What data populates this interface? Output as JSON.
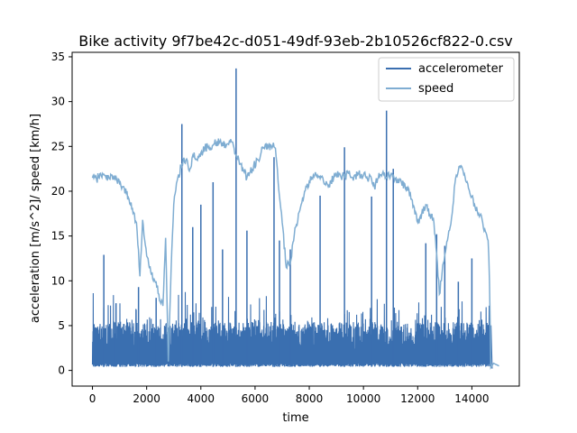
{
  "chart_data": {
    "type": "line",
    "title": "Bike activity 9f7be42c-d051-49df-93eb-2b10526cf822-0.csv",
    "xlabel": "time",
    "ylabel": "acceleration [m/s^2]/ speed [km/h]",
    "xlim": [
      -750,
      15750
    ],
    "ylim": [
      -1.75,
      35.5
    ],
    "xticks": [
      0,
      2000,
      4000,
      6000,
      8000,
      10000,
      12000,
      14000
    ],
    "xtick_labels": [
      "0",
      "2000",
      "4000",
      "6000",
      "8000",
      "10000",
      "12000",
      "14000"
    ],
    "yticks": [
      0,
      5,
      10,
      15,
      20,
      25,
      30,
      35
    ],
    "ytick_labels": [
      "0",
      "5",
      "10",
      "15",
      "20",
      "25",
      "30",
      "35"
    ],
    "grid": false,
    "legend": {
      "placement": "upper right"
    },
    "series": [
      {
        "name": "accelerometer",
        "color": "#3a6fb0",
        "baseline_low": 0.4,
        "typical_high": 4.5,
        "x_end": 14700,
        "spikes": [
          {
            "x": 420,
            "y": 12.9
          },
          {
            "x": 870,
            "y": 7.5
          },
          {
            "x": 1700,
            "y": 9.3
          },
          {
            "x": 2350,
            "y": 8.1
          },
          {
            "x": 3300,
            "y": 27.5
          },
          {
            "x": 3700,
            "y": 16.0
          },
          {
            "x": 4000,
            "y": 18.5
          },
          {
            "x": 4450,
            "y": 21.0
          },
          {
            "x": 4800,
            "y": 13.5
          },
          {
            "x": 5300,
            "y": 33.7
          },
          {
            "x": 5700,
            "y": 15.6
          },
          {
            "x": 6700,
            "y": 23.8
          },
          {
            "x": 6900,
            "y": 14.5
          },
          {
            "x": 7300,
            "y": 13.5
          },
          {
            "x": 8400,
            "y": 19.5
          },
          {
            "x": 9300,
            "y": 24.9
          },
          {
            "x": 10300,
            "y": 19.4
          },
          {
            "x": 10850,
            "y": 29.0
          },
          {
            "x": 11100,
            "y": 22.5
          },
          {
            "x": 12300,
            "y": 14.2
          },
          {
            "x": 12700,
            "y": 15.2
          },
          {
            "x": 13000,
            "y": 13.9
          },
          {
            "x": 13500,
            "y": 9.9
          },
          {
            "x": 14000,
            "y": 12.5
          }
        ]
      },
      {
        "name": "speed",
        "color": "#7fadd2",
        "x": [
          0,
          150,
          300,
          500,
          700,
          900,
          1100,
          1250,
          1400,
          1550,
          1650,
          1750,
          1850,
          1950,
          2050,
          2150,
          2300,
          2450,
          2600,
          2700,
          2800,
          2900,
          3000,
          3150,
          3300,
          3450,
          3600,
          3700,
          3850,
          4000,
          4150,
          4300,
          4500,
          4700,
          4900,
          5100,
          5300,
          5400,
          5550,
          5700,
          5900,
          6100,
          6300,
          6500,
          6650,
          6750,
          6850,
          7000,
          7150,
          7300,
          7500,
          7700,
          7900,
          8100,
          8300,
          8500,
          8700,
          8900,
          9100,
          9300,
          9450,
          9600,
          9800,
          10000,
          10200,
          10400,
          10550,
          10700,
          10850,
          11000,
          11200,
          11400,
          11600,
          11800,
          12000,
          12150,
          12300,
          12450,
          12600,
          12700,
          12800,
          12950,
          13100,
          13250,
          13400,
          13550,
          13650,
          13800,
          13950,
          14100,
          14250,
          14400,
          14500,
          14600,
          14650,
          14700,
          14800,
          15000
        ],
        "y": [
          21.5,
          21.3,
          22.0,
          21.5,
          21.8,
          21.2,
          20.5,
          19.8,
          18.5,
          17.5,
          15.5,
          10.5,
          16.8,
          14.0,
          12.5,
          11.0,
          10.0,
          8.5,
          7.2,
          14.8,
          1.0,
          11.0,
          18.5,
          21.5,
          23.0,
          23.5,
          22.5,
          24.0,
          23.5,
          24.3,
          24.8,
          25.0,
          25.3,
          25.5,
          25.2,
          25.8,
          24.0,
          23.5,
          22.5,
          21.5,
          22.5,
          23.5,
          24.8,
          25.0,
          25.0,
          24.8,
          21.0,
          16.5,
          11.5,
          12.0,
          16.0,
          18.5,
          20.5,
          21.5,
          21.8,
          21.5,
          20.5,
          21.5,
          22.0,
          21.5,
          22.0,
          21.5,
          22.0,
          21.8,
          21.5,
          20.5,
          21.5,
          22.0,
          21.5,
          21.8,
          21.5,
          21.0,
          20.5,
          19.0,
          16.5,
          17.5,
          18.5,
          17.5,
          16.5,
          13.0,
          8.5,
          12.0,
          14.5,
          17.0,
          21.5,
          22.8,
          22.5,
          21.0,
          19.5,
          18.5,
          17.5,
          16.5,
          15.5,
          14.5,
          10.0,
          0.3,
          0.8,
          0.5
        ]
      }
    ]
  }
}
